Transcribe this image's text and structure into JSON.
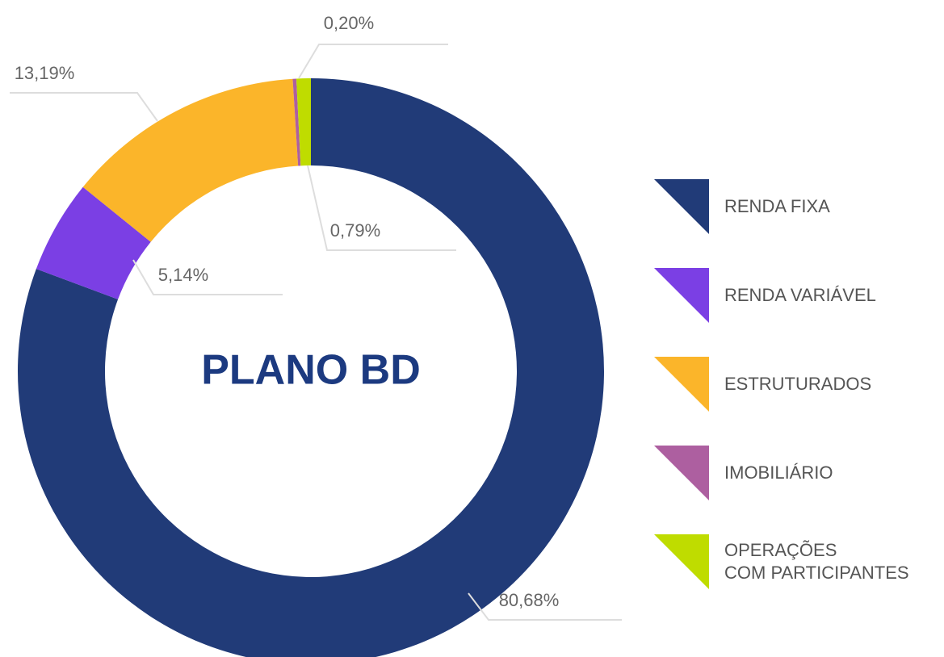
{
  "chart_data": {
    "type": "donut",
    "title": "PLANO BD",
    "categories": [
      "RENDA FIXA",
      "RENDA VARIÁVEL",
      "ESTRUTURADOS",
      "IMOBILIÁRIO",
      "OPERAÇÕES\nCOM PARTICIPANTES"
    ],
    "values": [
      80.68,
      5.14,
      13.19,
      0.2,
      0.79
    ],
    "value_labels": [
      "80,68%",
      "5,14%",
      "13,19%",
      "0,20%",
      "0,79%"
    ],
    "colors": [
      "#213b78",
      "#7b3fe4",
      "#fbb52a",
      "#ad5fa0",
      "#bfdc00"
    ],
    "legend": "right"
  }
}
